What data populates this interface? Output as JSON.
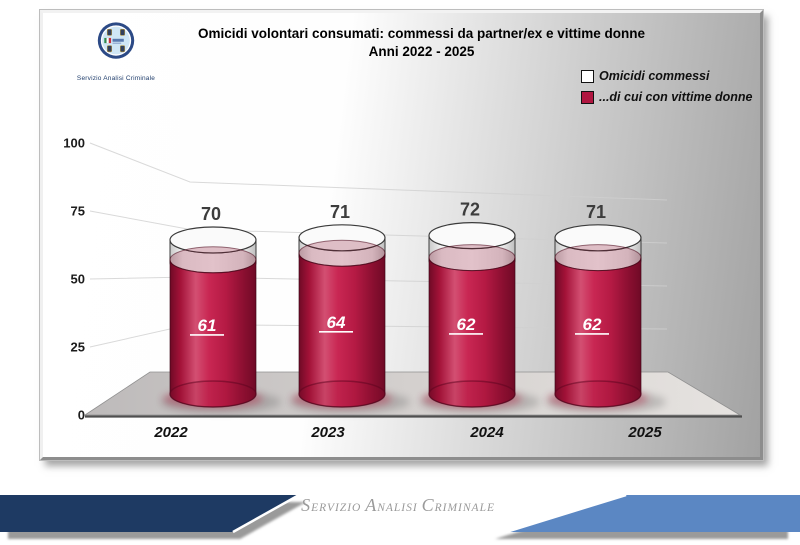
{
  "header": {
    "title_line1": "Omicidi volontari consumati: commessi da partner/ex e vittime donne",
    "title_line2": "Anni 2022 - 2025",
    "logo_caption": "Servizio Analisi Criminale"
  },
  "legend": {
    "items": [
      {
        "label": "Omicidi commessi",
        "swatch": "#ffffff"
      },
      {
        "label": "...di cui con vittime donne",
        "swatch": "#b01640"
      }
    ]
  },
  "chart_data": {
    "type": "bar",
    "style": "3d-cylinder",
    "categories": [
      "2022",
      "2023",
      "2024",
      "2025"
    ],
    "series": [
      {
        "name": "Omicidi commessi",
        "color": "#ffffff",
        "values": [
          70,
          71,
          72,
          71
        ]
      },
      {
        "name": "...di cui con vittime donne",
        "color": "#b01640",
        "values": [
          61,
          64,
          62,
          62
        ]
      }
    ],
    "title": "Omicidi volontari consumati: commessi da partner/ex e vittime donne — Anni 2022 - 2025",
    "xlabel": "",
    "ylabel": "",
    "ylim": [
      0,
      100
    ],
    "yticks": [
      0,
      25,
      50,
      75,
      100
    ],
    "grid": true,
    "legend_position": "top-right"
  },
  "footer": {
    "banner_text": "Servizio Analisi Criminale",
    "navy_color": "#1e3a63",
    "blue_color": "#5b87c3"
  }
}
